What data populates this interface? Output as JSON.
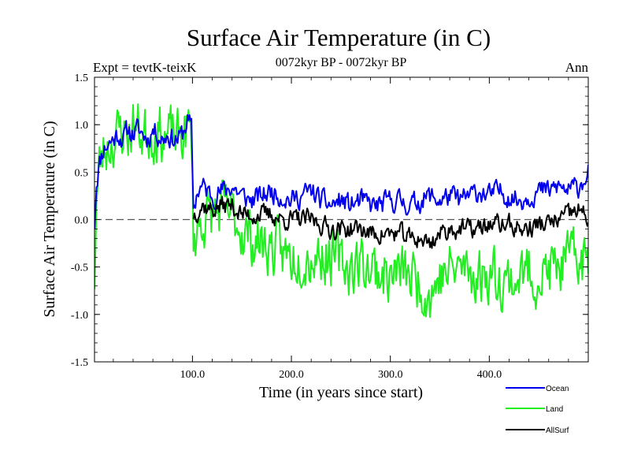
{
  "chart_data": {
    "type": "line",
    "title": "Surface Air Temperature (in C)",
    "subtitle": "0072kyr BP - 0072kyr BP",
    "experiment": "Expt = tevtK-teixK",
    "season": "Ann",
    "xlabel": "Time (in years since start)",
    "ylabel": "Surface Air Temperature (in C)",
    "xlim": [
      1,
      500
    ],
    "ylim": [
      -1.5,
      1.5
    ],
    "x_ticks": [
      100,
      200,
      300,
      400
    ],
    "x_tick_labels": [
      "100.0",
      "200.0",
      "300.0",
      "400.0"
    ],
    "y_ticks": [
      -1.5,
      -1.0,
      -0.5,
      0.0,
      0.5,
      1.0,
      1.5
    ],
    "y_tick_labels": [
      "-1.5",
      "-1.0",
      "-0.5",
      "0.0",
      "0.5",
      "1.0",
      "1.5"
    ],
    "reference_line": 0.0,
    "grid": false,
    "legend_position": "bottom-right",
    "series": [
      {
        "name": "Ocean",
        "color": "#0000ee",
        "anchors_x": [
          1,
          3,
          6,
          10,
          15,
          20,
          25,
          30,
          35,
          40,
          45,
          50,
          55,
          60,
          65,
          70,
          75,
          80,
          85,
          90,
          95,
          99,
          101,
          105,
          110,
          120,
          130,
          140,
          150,
          160,
          170,
          180,
          190,
          200,
          210,
          220,
          230,
          240,
          250,
          260,
          270,
          280,
          290,
          300,
          310,
          320,
          330,
          340,
          350,
          360,
          370,
          380,
          390,
          400,
          410,
          420,
          430,
          440,
          450,
          460,
          470,
          480,
          490,
          500
        ],
        "anchors_y": [
          -0.05,
          0.4,
          0.6,
          0.75,
          0.8,
          0.85,
          0.9,
          0.85,
          0.95,
          0.9,
          0.95,
          0.9,
          0.85,
          0.95,
          0.9,
          0.85,
          0.9,
          0.85,
          0.85,
          0.9,
          1.05,
          0.95,
          0.1,
          0.3,
          0.35,
          0.25,
          0.3,
          0.35,
          0.25,
          0.2,
          0.25,
          0.3,
          0.25,
          0.2,
          0.25,
          0.3,
          0.2,
          0.15,
          0.2,
          0.15,
          0.2,
          0.15,
          0.15,
          0.2,
          0.2,
          0.15,
          0.2,
          0.25,
          0.2,
          0.25,
          0.2,
          0.25,
          0.3,
          0.25,
          0.3,
          0.25,
          0.2,
          0.25,
          0.3,
          0.3,
          0.35,
          0.3,
          0.35,
          0.5
        ],
        "noise": 0.1,
        "seed": 11
      },
      {
        "name": "Land",
        "color": "#22ee22",
        "anchors_x": [
          1,
          3,
          6,
          10,
          15,
          20,
          25,
          30,
          35,
          40,
          45,
          50,
          55,
          60,
          65,
          70,
          75,
          80,
          85,
          90,
          95,
          99,
          101,
          105,
          110,
          120,
          130,
          140,
          150,
          160,
          170,
          180,
          190,
          200,
          210,
          220,
          230,
          240,
          250,
          260,
          270,
          280,
          290,
          300,
          310,
          320,
          330,
          340,
          350,
          360,
          370,
          380,
          390,
          400,
          410,
          420,
          430,
          440,
          450,
          460,
          470,
          480,
          490,
          500
        ],
        "anchors_y": [
          -0.6,
          0.2,
          0.55,
          0.7,
          0.8,
          0.85,
          0.9,
          0.95,
          0.9,
          1.0,
          0.95,
          0.9,
          0.95,
          0.9,
          0.95,
          0.9,
          0.85,
          0.9,
          0.85,
          0.9,
          0.95,
          0.9,
          -0.2,
          -0.1,
          0.0,
          0.05,
          0.1,
          0.05,
          -0.1,
          -0.2,
          -0.25,
          -0.3,
          -0.35,
          -0.4,
          -0.35,
          -0.4,
          -0.35,
          -0.4,
          -0.45,
          -0.5,
          -0.45,
          -0.5,
          -0.55,
          -0.6,
          -0.55,
          -0.6,
          -0.65,
          -0.8,
          -0.6,
          -0.55,
          -0.5,
          -0.55,
          -0.6,
          -0.55,
          -0.6,
          -0.65,
          -0.6,
          -0.55,
          -0.6,
          -0.55,
          -0.5,
          -0.45,
          -0.4,
          -0.45
        ],
        "noise": 0.26,
        "seed": 23
      },
      {
        "name": "AllSurf",
        "color": "#000000",
        "anchors_x": [
          101,
          105,
          110,
          120,
          130,
          140,
          150,
          160,
          170,
          180,
          190,
          200,
          210,
          220,
          230,
          240,
          250,
          260,
          270,
          280,
          290,
          300,
          310,
          320,
          330,
          340,
          350,
          360,
          370,
          380,
          390,
          400,
          410,
          420,
          430,
          440,
          450,
          460,
          470,
          480,
          490,
          500
        ],
        "anchors_y": [
          0.05,
          0.1,
          0.15,
          0.1,
          0.15,
          0.15,
          0.05,
          0.05,
          0.05,
          0.05,
          0.0,
          0.0,
          0.0,
          0.0,
          -0.05,
          -0.1,
          -0.1,
          -0.1,
          -0.1,
          -0.15,
          -0.15,
          -0.15,
          -0.15,
          -0.2,
          -0.2,
          -0.25,
          -0.15,
          -0.1,
          -0.1,
          -0.1,
          -0.1,
          -0.05,
          -0.05,
          -0.05,
          -0.1,
          -0.1,
          -0.05,
          -0.05,
          0.0,
          0.05,
          0.1,
          0.0
        ],
        "noise": 0.09,
        "seed": 37
      }
    ]
  }
}
